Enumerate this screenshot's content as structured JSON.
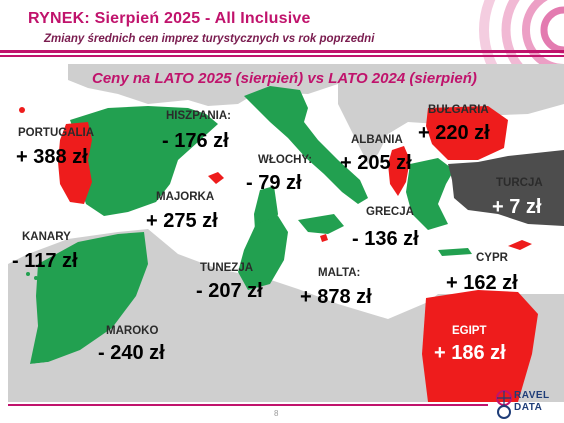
{
  "header": {
    "title": "RYNEK: Sierpień 2025 - All Inclusive",
    "subtitle": "Zmiany średnich cen imprez turystycznych vs rok poprzedni"
  },
  "map": {
    "heading": "Ceny na LATO 2025 (sierpień) vs  LATO 2024 (sierpień)",
    "legend_colors": {
      "increase": "#ee1c1c",
      "decrease": "#22a050",
      "neutral": "#4d4d4d",
      "land": "#cfcfcf",
      "sea": "#ffffff",
      "accent": "#c0136c"
    },
    "destinations": [
      {
        "id": "portugalia",
        "label": "PORTUGALIA",
        "price": "+ 388 zł",
        "change": 388,
        "direction": "increase"
      },
      {
        "id": "hiszpania",
        "label": "HISZPANIA:",
        "price": "- 176 zł",
        "change": -176,
        "direction": "decrease"
      },
      {
        "id": "wlochy",
        "label": "WŁOCHY:",
        "price": "- 79 zł",
        "change": -79,
        "direction": "decrease"
      },
      {
        "id": "albania",
        "label": "ALBANIA",
        "price": "+ 205 zł",
        "change": 205,
        "direction": "increase"
      },
      {
        "id": "bulgaria",
        "label": "BUŁGARIA",
        "price": "+ 220 zł",
        "change": 220,
        "direction": "increase"
      },
      {
        "id": "turcja",
        "label": "TURCJA",
        "price": "+ 7 zł",
        "change": 7,
        "direction": "neutral"
      },
      {
        "id": "majorka",
        "label": "MAJORKA",
        "price": "+ 275 zł",
        "change": 275,
        "direction": "increase"
      },
      {
        "id": "kanary",
        "label": "KANARY",
        "price": "- 117 zł",
        "change": -117,
        "direction": "decrease"
      },
      {
        "id": "grecja",
        "label": "GRECJA",
        "price": "- 136 zł",
        "change": -136,
        "direction": "decrease"
      },
      {
        "id": "tunezja",
        "label": "TUNEZJA",
        "price": "- 207 zł",
        "change": -207,
        "direction": "decrease"
      },
      {
        "id": "malta",
        "label": "MALTA:",
        "price": "+ 878 zł",
        "change": 878,
        "direction": "increase"
      },
      {
        "id": "cypr",
        "label": "CYPR",
        "price": "+ 162 zł",
        "change": 162,
        "direction": "increase"
      },
      {
        "id": "maroko",
        "label": "MAROKO",
        "price": "- 240 zł",
        "change": -240,
        "direction": "decrease"
      },
      {
        "id": "egipt",
        "label": "EGIPT",
        "price": "+ 186 zł",
        "change": 186,
        "direction": "increase"
      }
    ]
  },
  "footer": {
    "page_number": "8",
    "logo_top": "RAVEL",
    "logo_bottom": "DATA"
  }
}
